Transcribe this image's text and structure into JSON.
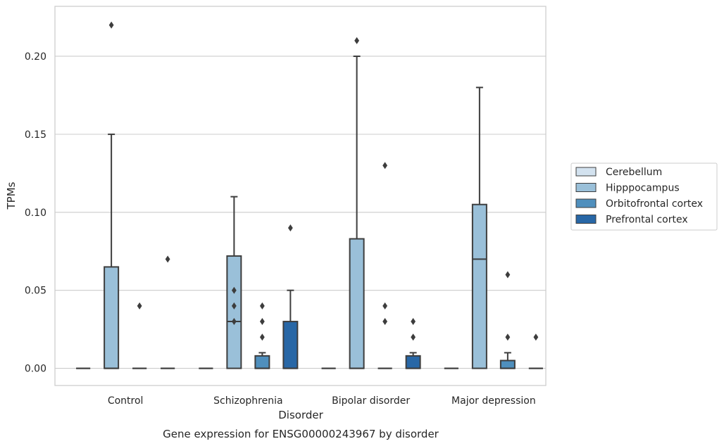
{
  "chart_data": {
    "type": "box",
    "xlabel": "Disorder",
    "ylabel": "TPMs",
    "caption": "Gene expression for ENSG00000243967 by disorder",
    "ylim": [
      -0.011,
      0.232
    ],
    "yticks": [
      0.0,
      0.05,
      0.1,
      0.15,
      0.2
    ],
    "ytick_labels": [
      "0.00",
      "0.05",
      "0.10",
      "0.15",
      "0.20"
    ],
    "grid": "horizontal",
    "legend_position": "right-center",
    "categories": [
      "Control",
      "Schizophrenia",
      "Bipolar disorder",
      "Major depression"
    ],
    "series": [
      {
        "name": "Cerebellum",
        "color": "#d3e2ef",
        "boxes": [
          {
            "category": "Control",
            "q1": 0,
            "median": 0,
            "q3": 0,
            "whisker_low": 0,
            "whisker_high": 0,
            "outliers": []
          },
          {
            "category": "Schizophrenia",
            "q1": 0,
            "median": 0,
            "q3": 0,
            "whisker_low": 0,
            "whisker_high": 0,
            "outliers": []
          },
          {
            "category": "Bipolar disorder",
            "q1": 0,
            "median": 0,
            "q3": 0,
            "whisker_low": 0,
            "whisker_high": 0,
            "outliers": []
          },
          {
            "category": "Major depression",
            "q1": 0,
            "median": 0,
            "q3": 0,
            "whisker_low": 0,
            "whisker_high": 0,
            "outliers": []
          }
        ]
      },
      {
        "name": "Hipppocampus",
        "color": "#9ac0d9",
        "boxes": [
          {
            "category": "Control",
            "q1": 0,
            "median": 0,
            "q3": 0.065,
            "whisker_low": 0,
            "whisker_high": 0.15,
            "outliers": [
              0.22
            ]
          },
          {
            "category": "Schizophrenia",
            "q1": 0,
            "median": 0.03,
            "q3": 0.072,
            "whisker_low": 0,
            "whisker_high": 0.11,
            "outliers": [
              0.05,
              0.04,
              0.03
            ]
          },
          {
            "category": "Bipolar disorder",
            "q1": 0,
            "median": 0,
            "q3": 0.083,
            "whisker_low": 0,
            "whisker_high": 0.2,
            "outliers": [
              0.21
            ]
          },
          {
            "category": "Major depression",
            "q1": 0,
            "median": 0.07,
            "q3": 0.105,
            "whisker_low": 0,
            "whisker_high": 0.18,
            "outliers": []
          }
        ]
      },
      {
        "name": "Orbitofrontal cortex",
        "color": "#4f8fbd",
        "boxes": [
          {
            "category": "Control",
            "q1": 0,
            "median": 0,
            "q3": 0,
            "whisker_low": 0,
            "whisker_high": 0,
            "outliers": [
              0.04
            ]
          },
          {
            "category": "Schizophrenia",
            "q1": 0,
            "median": 0,
            "q3": 0.008,
            "whisker_low": 0,
            "whisker_high": 0.01,
            "outliers": [
              0.04,
              0.03,
              0.02
            ]
          },
          {
            "category": "Bipolar disorder",
            "q1": 0,
            "median": 0,
            "q3": 0,
            "whisker_low": 0,
            "whisker_high": 0,
            "outliers": [
              0.13,
              0.04,
              0.03
            ]
          },
          {
            "category": "Major depression",
            "q1": 0,
            "median": 0,
            "q3": 0.005,
            "whisker_low": 0,
            "whisker_high": 0.01,
            "outliers": [
              0.06,
              0.02
            ]
          }
        ]
      },
      {
        "name": "Prefrontal cortex",
        "color": "#2867a6",
        "boxes": [
          {
            "category": "Control",
            "q1": 0,
            "median": 0,
            "q3": 0,
            "whisker_low": 0,
            "whisker_high": 0,
            "outliers": [
              0.07
            ]
          },
          {
            "category": "Schizophrenia",
            "q1": 0,
            "median": 0,
            "q3": 0.03,
            "whisker_low": 0,
            "whisker_high": 0.05,
            "outliers": [
              0.09
            ]
          },
          {
            "category": "Bipolar disorder",
            "q1": 0,
            "median": 0,
            "q3": 0.008,
            "whisker_low": 0,
            "whisker_high": 0.01,
            "outliers": [
              0.03,
              0.02
            ]
          },
          {
            "category": "Major depression",
            "q1": 0,
            "median": 0,
            "q3": 0,
            "whisker_low": 0,
            "whisker_high": 0,
            "outliers": [
              0.02
            ]
          }
        ]
      }
    ]
  }
}
